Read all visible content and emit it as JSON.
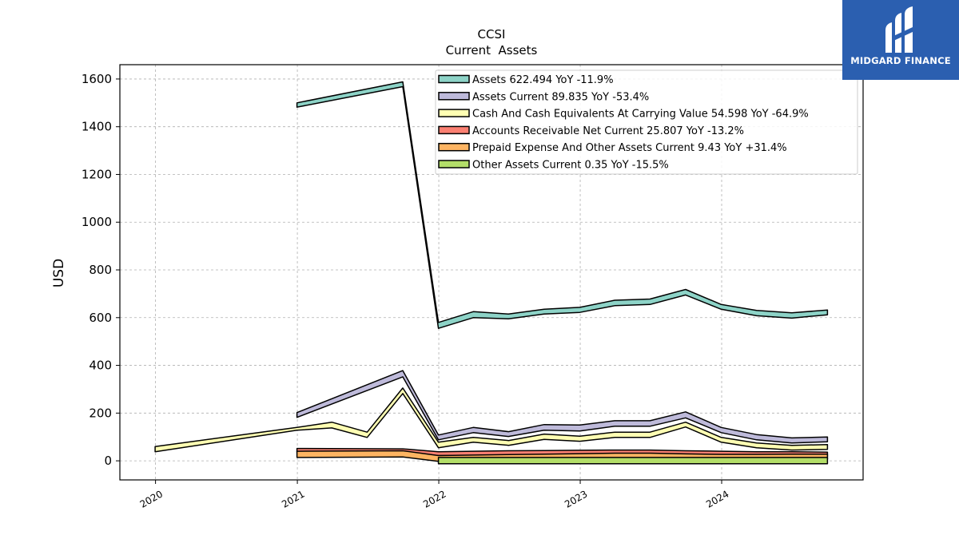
{
  "brand": {
    "name": "MIDGARD FINANCE",
    "bg_color": "#2b5fb0"
  },
  "chart_data": {
    "type": "area",
    "title": "CCSI",
    "subtitle": "Current  Assets",
    "xlabel": "",
    "ylabel": "USD",
    "xlim": [
      "2019-10-01",
      "2024-12-31"
    ],
    "ylim": [
      -80,
      1660
    ],
    "x_ticks": [
      "2020",
      "2021",
      "2022",
      "2023",
      "2024"
    ],
    "y_ticks": [
      0,
      200,
      400,
      600,
      800,
      1000,
      1200,
      1400,
      1600
    ],
    "grid": true,
    "legend_position": "top-right",
    "series": [
      {
        "name": "Assets",
        "legend": "Assets  622.494 YoY -11.9%",
        "color": "#8dd3c7",
        "points": [
          [
            "2020-12-31",
            1482,
            1500
          ],
          [
            "2021-09-30",
            1568,
            1588
          ],
          [
            "2021-12-31",
            555,
            580
          ],
          [
            "2022-03-31",
            600,
            625
          ],
          [
            "2022-06-30",
            595,
            615
          ],
          [
            "2022-09-30",
            615,
            635
          ],
          [
            "2022-12-31",
            622,
            643
          ],
          [
            "2023-03-31",
            650,
            673
          ],
          [
            "2023-06-30",
            655,
            678
          ],
          [
            "2023-09-30",
            695,
            718
          ],
          [
            "2023-12-31",
            635,
            655
          ],
          [
            "2024-03-31",
            608,
            630
          ],
          [
            "2024-06-30",
            598,
            620
          ],
          [
            "2024-09-30",
            612,
            632
          ]
        ]
      },
      {
        "name": "Assets Current",
        "legend": "Assets Current  89.835 YoY -53.4%",
        "color": "#bebada",
        "points": [
          [
            "2020-12-31",
            182,
            202
          ],
          [
            "2021-09-30",
            352,
            378
          ],
          [
            "2021-12-31",
            88,
            108
          ],
          [
            "2022-03-31",
            118,
            140
          ],
          [
            "2022-06-30",
            102,
            122
          ],
          [
            "2022-09-30",
            128,
            152
          ],
          [
            "2022-12-31",
            125,
            150
          ],
          [
            "2023-03-31",
            145,
            168
          ],
          [
            "2023-06-30",
            145,
            168
          ],
          [
            "2023-09-30",
            180,
            205
          ],
          [
            "2023-12-31",
            118,
            140
          ],
          [
            "2024-03-31",
            88,
            110
          ],
          [
            "2024-06-30",
            75,
            96
          ],
          [
            "2024-09-30",
            80,
            100
          ]
        ]
      },
      {
        "name": "Cash And Cash Equivalents At Carrying Value",
        "legend": "Cash And Cash Equivalents At Carrying Value  54.598 YoY -64.9%",
        "color": "#ffffb3",
        "points": [
          [
            "2019-12-31",
            38,
            60
          ],
          [
            "2020-12-31",
            128,
            140
          ],
          [
            "2021-03-31",
            138,
            162
          ],
          [
            "2021-06-30",
            98,
            120
          ],
          [
            "2021-09-30",
            282,
            305
          ],
          [
            "2021-12-31",
            55,
            78
          ],
          [
            "2022-03-31",
            78,
            98
          ],
          [
            "2022-06-30",
            65,
            85
          ],
          [
            "2022-09-30",
            90,
            112
          ],
          [
            "2022-12-31",
            82,
            103
          ],
          [
            "2023-03-31",
            98,
            120
          ],
          [
            "2023-06-30",
            98,
            120
          ],
          [
            "2023-09-30",
            142,
            162
          ],
          [
            "2023-12-31",
            78,
            98
          ],
          [
            "2024-03-31",
            55,
            75
          ],
          [
            "2024-06-30",
            45,
            65
          ],
          [
            "2024-09-30",
            48,
            68
          ]
        ]
      },
      {
        "name": "Accounts Receivable Net Current",
        "legend": "Accounts Receivable Net Current  25.807 YoY -13.2%",
        "color": "#fb8072",
        "points": [
          [
            "2020-12-31",
            36,
            52
          ],
          [
            "2021-09-30",
            35,
            50
          ],
          [
            "2021-12-31",
            22,
            38
          ],
          [
            "2022-03-31",
            22,
            40
          ],
          [
            "2022-06-30",
            24,
            42
          ],
          [
            "2022-09-30",
            25,
            43
          ],
          [
            "2022-12-31",
            25,
            44
          ],
          [
            "2023-03-31",
            26,
            45
          ],
          [
            "2023-06-30",
            27,
            45
          ],
          [
            "2023-09-30",
            24,
            42
          ],
          [
            "2023-12-31",
            22,
            40
          ],
          [
            "2024-03-31",
            20,
            38
          ],
          [
            "2024-06-30",
            20,
            38
          ],
          [
            "2024-09-30",
            18,
            36
          ]
        ]
      },
      {
        "name": "Prepaid Expense And Other Assets Current",
        "legend": "Prepaid Expense And Other Assets Current  9.43 YoY +31.4%",
        "color": "#fdb462",
        "points": [
          [
            "2020-12-31",
            14,
            40
          ],
          [
            "2021-09-30",
            16,
            42
          ],
          [
            "2021-12-31",
            -2,
            22
          ],
          [
            "2022-03-31",
            0,
            24
          ],
          [
            "2022-06-30",
            2,
            26
          ],
          [
            "2022-09-30",
            4,
            28
          ],
          [
            "2022-12-31",
            8,
            30
          ],
          [
            "2023-03-31",
            10,
            32
          ],
          [
            "2023-06-30",
            10,
            32
          ],
          [
            "2023-09-30",
            7,
            29
          ],
          [
            "2023-12-31",
            6,
            27
          ],
          [
            "2024-03-31",
            6,
            27
          ],
          [
            "2024-06-30",
            7,
            28
          ],
          [
            "2024-09-30",
            7,
            28
          ]
        ]
      },
      {
        "name": "Other Assets Current",
        "legend": "Other Assets Current  0.35 YoY -15.5%",
        "color": "#b3de69",
        "points": [
          [
            "2021-12-31",
            -12,
            14
          ],
          [
            "2022-03-31",
            -12,
            14
          ],
          [
            "2022-06-30",
            -12,
            14
          ],
          [
            "2022-09-30",
            -12,
            14
          ],
          [
            "2022-12-31",
            -12,
            14
          ],
          [
            "2023-03-31",
            -12,
            14
          ],
          [
            "2023-06-30",
            -12,
            14
          ],
          [
            "2023-09-30",
            -12,
            14
          ],
          [
            "2023-12-31",
            -12,
            14
          ],
          [
            "2024-03-31",
            -12,
            14
          ],
          [
            "2024-06-30",
            -12,
            14
          ],
          [
            "2024-09-30",
            -12,
            14
          ]
        ]
      }
    ]
  }
}
